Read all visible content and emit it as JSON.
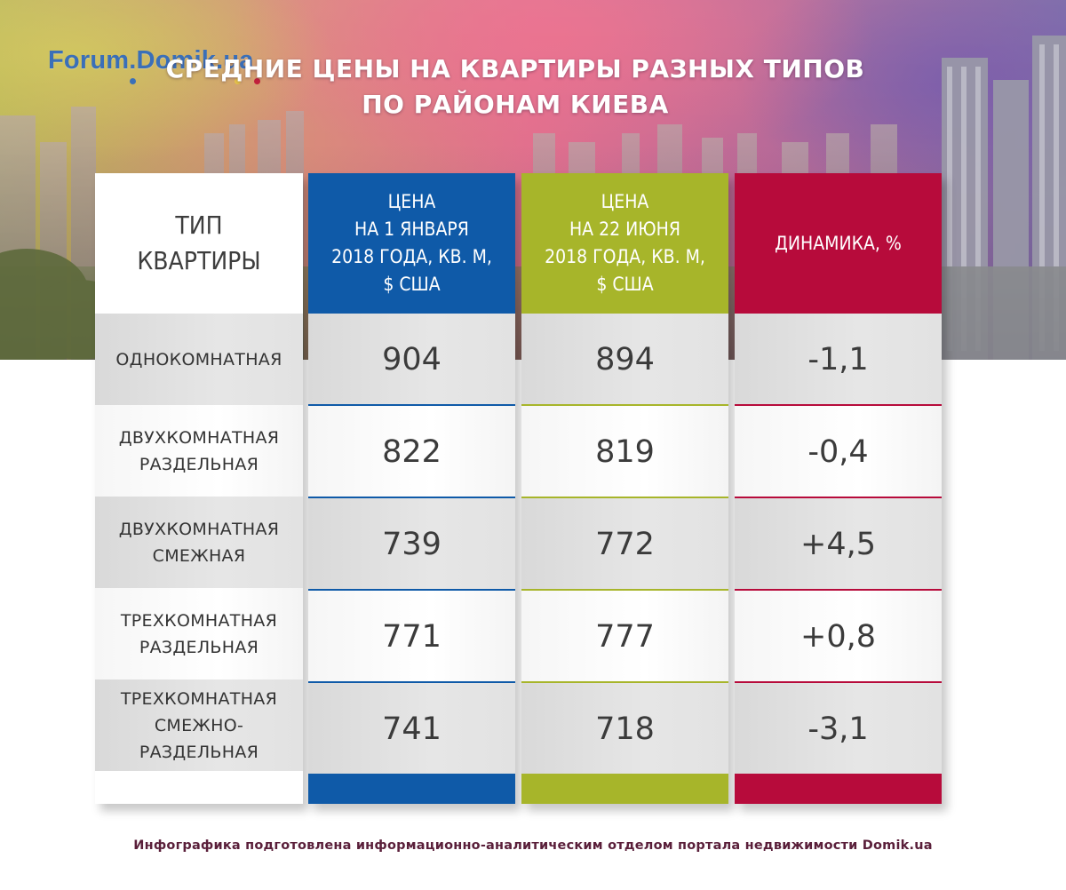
{
  "brand": {
    "logo_text": "Forum.Domik.ua",
    "dot_colors": [
      "#3a6fb8",
      "#e7c44a",
      "#c0203c"
    ]
  },
  "colors": {
    "blue": "#0f5aa8",
    "green": "#a7b52a",
    "red": "#b70b3b",
    "title_text": "#ffffff"
  },
  "chart_data": {
    "type": "table",
    "title": "СРЕДНИЕ ЦЕНЫ НА КВАРТИРЫ РАЗНЫХ ТИПОВ\nПО РАЙОНАМ КИЕВА",
    "columns": [
      "ТИП\nКВАРТИРЫ",
      "ЦЕНА\nНА 1 ЯНВАРЯ\n2018 ГОДА, КВ. М,\n$ США",
      "ЦЕНА\nНА 22 ИЮНЯ\n2018 ГОДА, КВ. М,\n$ США",
      "ДИНАМИКА, %"
    ],
    "rows": [
      {
        "type": "ОДНОКОМНАТНАЯ",
        "price_jan": "904",
        "price_jun": "894",
        "change": "-1,1"
      },
      {
        "type": "ДВУХКОМНАТНАЯ\nРАЗДЕЛЬНАЯ",
        "price_jan": "822",
        "price_jun": "819",
        "change": "-0,4"
      },
      {
        "type": "ДВУХКОМНАТНАЯ\nСМЕЖНАЯ",
        "price_jan": "739",
        "price_jun": "772",
        "change": "+4,5"
      },
      {
        "type": "ТРЕХКОМНАТНАЯ\nРАЗДЕЛЬНАЯ",
        "price_jan": "771",
        "price_jun": "777",
        "change": "+0,8"
      },
      {
        "type": "ТРЕХКОМНАТНАЯ\nСМЕЖНО-\nРАЗДЕЛЬНАЯ",
        "price_jan": "741",
        "price_jun": "718",
        "change": "-3,1"
      }
    ]
  },
  "footer": {
    "note": "Инфографика подготовлена информационно-аналитическим отделом портала недвижимости Domik.ua"
  }
}
